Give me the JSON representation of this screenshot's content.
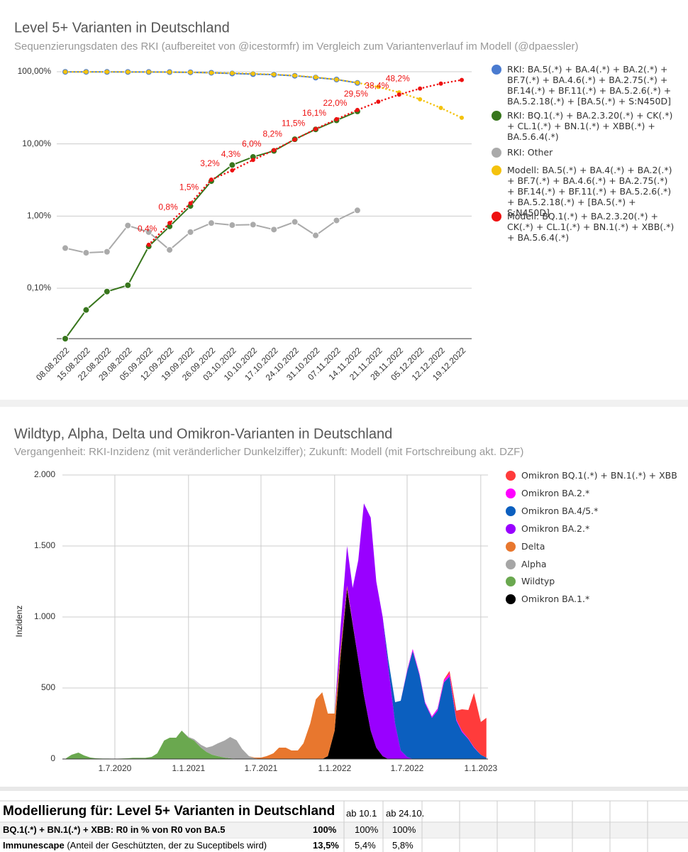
{
  "chart_data": [
    {
      "type": "line",
      "title": "Level 5+ Varianten in Deutschland",
      "subtitle": "Sequenzierungsdaten des RKI (aufbereitet von @icestormfr) im Vergleich zum Variantenverlauf im Modell (@dpaessler)",
      "categories": [
        "08.08.2022",
        "15.08.2022",
        "22.08.2022",
        "29.08.2022",
        "05.09.2022",
        "12.09.2022",
        "19.09.2022",
        "26.09.2022",
        "03.10.2022",
        "10.10.2022",
        "17.10.2022",
        "24.10.2022",
        "31.10.2022",
        "07.11.2022",
        "14.11.2022",
        "21.11.2022",
        "28.11.2022",
        "05.12.2022",
        "12.12.2022",
        "19.12.2022"
      ],
      "log_scale": true,
      "grid": true,
      "legend": "right",
      "ylim": [
        0.02,
        120
      ],
      "yticks": [
        {
          "value": 0.1,
          "label": "0,10%"
        },
        {
          "value": 1,
          "label": "1,00%"
        },
        {
          "value": 10,
          "label": "10,00%"
        },
        {
          "value": 100,
          "label": "100,00%"
        }
      ],
      "series": [
        {
          "name": "RKI: BA.5(.*) + BA.4(.*) + BA.2(.*) + BF.7(.*) + BA.4.6(.*) + BA.2.75(.*) + BF.14(.*) + BF.11(.*) + BA.5.2.6(.*) + BA.5.2.18(.*) + [BA.5(.*) + S:N450D]",
          "color": "#4a7bd0",
          "style": "solid",
          "values": [
            99.6,
            99.6,
            99.5,
            99.4,
            99.2,
            98.9,
            98.2,
            96.8,
            94.5,
            92.7,
            91.2,
            88,
            83,
            78,
            70,
            null,
            null,
            null,
            null,
            null
          ]
        },
        {
          "name": "RKI: BQ.1(.*) + BA.2.3.20(.*) + CK(.*) + CL.1(.*) + BN.1(.*) + XBB(.*) + BA.5.6.4(.*)",
          "color": "#38761d",
          "style": "solid",
          "values": [
            0.02,
            0.05,
            0.09,
            0.11,
            0.38,
            0.72,
            1.38,
            3.05,
            5.1,
            6.6,
            8.0,
            11.6,
            15.9,
            21.2,
            28.2,
            null,
            null,
            null,
            null,
            null
          ]
        },
        {
          "name": "RKI: Other",
          "color": "#aaaaaa",
          "style": "solid",
          "values": [
            0.36,
            0.31,
            0.32,
            0.74,
            0.6,
            0.34,
            0.6,
            0.8,
            0.75,
            0.76,
            0.65,
            0.83,
            0.54,
            0.87,
            1.2,
            null,
            null,
            null,
            null,
            null
          ]
        },
        {
          "name": "Modell: BA.5(.*) + BA.4(.*) + BA.2(.*) + BF.7(.*) + BA.4.6(.*) + BA.2.75(.*) + BF.14(.*) + BF.11(.*) + BA.5.2.6(.*) + BA.5.2.18(.*) + [BA.5(.*) + S:N450D]",
          "color": "#f4c20d",
          "style": "dotted",
          "values": [
            99.6,
            99.6,
            99.5,
            99.4,
            99.2,
            98.9,
            98.3,
            96.8,
            95.7,
            94,
            91.8,
            88.5,
            83.9,
            78,
            70.5,
            61.6,
            51.8,
            41.5,
            31.5,
            23
          ]
        },
        {
          "name": "Modell: BQ.1(.*) + BA.2.3.20(.*) + CK(.*) + CL.1(.*) + BN.1(.*) + XBB(.*) + BA.5.6.4(.*)",
          "color": "#ee1111",
          "style": "dotted",
          "values": [
            null,
            null,
            null,
            null,
            0.4,
            0.8,
            1.5,
            3.2,
            4.3,
            6.0,
            8.2,
            11.5,
            16.1,
            22.0,
            29.5,
            38.4,
            48.2,
            58.5,
            68.5,
            77
          ],
          "value_labels": [
            null,
            null,
            null,
            null,
            "0,4%",
            "0,8%",
            "1,5%",
            "3,2%",
            "4,3%",
            "6,0%",
            "8,2%",
            "11,5%",
            "16,1%",
            "22,0%",
            "29,5%",
            "38,4%",
            "48,2%",
            null,
            null,
            null
          ]
        }
      ]
    },
    {
      "type": "area",
      "title": "Wildtyp, Alpha, Delta und Omikron-Varianten in Deutschland",
      "subtitle": "Vergangenheit: RKI-Inzidenz (mit veränderlicher Dunkelziffer); Zukunft: Modell (mit Fortschreibung akt. DZF)",
      "ylabel": "Inzidenz",
      "stacked": true,
      "grid": true,
      "legend": "right",
      "x": [
        "1.3.2020",
        "15.3.2020",
        "1.4.2020",
        "15.4.2020",
        "1.5.2020",
        "15.5.2020",
        "1.6.2020",
        "15.6.2020",
        "1.7.2020",
        "15.7.2020",
        "1.8.2020",
        "15.8.2020",
        "1.9.2020",
        "15.9.2020",
        "1.10.2020",
        "15.10.2020",
        "1.11.2020",
        "15.11.2020",
        "1.12.2020",
        "15.12.2020",
        "1.1.2021",
        "15.1.2021",
        "1.2.2021",
        "15.2.2021",
        "1.3.2021",
        "15.3.2021",
        "1.4.2021",
        "15.4.2021",
        "1.5.2021",
        "15.5.2021",
        "1.6.2021",
        "15.6.2021",
        "1.7.2021",
        "15.7.2021",
        "1.8.2021",
        "15.8.2021",
        "1.9.2021",
        "15.9.2021",
        "1.10.2021",
        "15.10.2021",
        "1.11.2021",
        "15.11.2021",
        "1.12.2021",
        "15.12.2021",
        "1.1.2022",
        "15.1.2022",
        "1.2.2022",
        "15.2.2022",
        "1.3.2022",
        "15.3.2022",
        "1.4.2022",
        "15.4.2022",
        "1.5.2022",
        "15.5.2022",
        "1.6.2022",
        "15.6.2022",
        "1.7.2022",
        "15.7.2022",
        "1.8.2022",
        "15.8.2022",
        "1.9.2022",
        "15.9.2022",
        "1.10.2022",
        "15.10.2022",
        "1.11.2022",
        "15.11.2022",
        "1.12.2022",
        "15.12.2022",
        "1.1.2023",
        "15.1.2023"
      ],
      "xlim": [
        "21.2.2020",
        "19.1.2023"
      ],
      "xticks": [
        "1.7.2020",
        "1.1.2021",
        "1.7.2021",
        "1.1.2022",
        "1.7.2022",
        "1.1.2023"
      ],
      "ylim": [
        0,
        2000
      ],
      "yticks": [
        0,
        500,
        {
          "value": 1000,
          "label": "1.000"
        },
        {
          "value": 1500,
          "label": "1.500"
        },
        {
          "value": 2000,
          "label": "2.000"
        }
      ],
      "series": [
        {
          "name": "Omikron BQ.1(.*) + BN.1(.*) + XBB",
          "color": "#ff3b3b",
          "values": [
            0,
            0,
            0,
            0,
            0,
            0,
            0,
            0,
            0,
            0,
            0,
            0,
            0,
            0,
            0,
            0,
            0,
            0,
            0,
            0,
            0,
            0,
            0,
            0,
            0,
            0,
            0,
            0,
            0,
            0,
            0,
            0,
            0,
            0,
            0,
            0,
            0,
            0,
            0,
            0,
            0,
            0,
            0,
            0,
            0,
            0,
            0,
            0,
            0,
            0,
            0,
            0,
            0,
            0,
            0,
            0,
            0,
            0,
            0,
            0,
            0,
            0,
            5,
            20,
            60,
            150,
            200,
            380,
            230,
            280
          ]
        },
        {
          "name": "Omikron BA.2.*",
          "color": "#ff00ff",
          "values": [
            0,
            0,
            0,
            0,
            0,
            0,
            0,
            0,
            0,
            0,
            0,
            0,
            0,
            0,
            0,
            0,
            0,
            0,
            0,
            0,
            0,
            0,
            0,
            0,
            0,
            0,
            0,
            0,
            0,
            0,
            0,
            0,
            0,
            0,
            0,
            0,
            0,
            0,
            0,
            0,
            0,
            0,
            0,
            0,
            0,
            0,
            0,
            0,
            0,
            0,
            0,
            0,
            0,
            0,
            0,
            0,
            10,
            15,
            10,
            10,
            10,
            15,
            15,
            20,
            10,
            10,
            5,
            5,
            0,
            0
          ]
        },
        {
          "name": "Omikron BA.4/5.*",
          "color": "#0b5fbf",
          "values": [
            0,
            0,
            0,
            0,
            0,
            0,
            0,
            0,
            0,
            0,
            0,
            0,
            0,
            0,
            0,
            0,
            0,
            0,
            0,
            0,
            0,
            0,
            0,
            0,
            0,
            0,
            0,
            0,
            0,
            0,
            0,
            0,
            0,
            0,
            0,
            0,
            0,
            0,
            0,
            0,
            0,
            0,
            0,
            0,
            0,
            0,
            0,
            0,
            0,
            0,
            0,
            0,
            0,
            50,
            150,
            350,
            600,
            760,
            590,
            390,
            290,
            340,
            540,
            580,
            270,
            190,
            140,
            80,
            30,
            10
          ]
        },
        {
          "name": "Omikron BA.2.*",
          "color": "#9900ff",
          "values": [
            0,
            0,
            0,
            0,
            0,
            0,
            0,
            0,
            0,
            0,
            0,
            0,
            0,
            0,
            0,
            0,
            0,
            0,
            0,
            0,
            0,
            0,
            0,
            0,
            0,
            0,
            0,
            0,
            0,
            0,
            0,
            0,
            0,
            0,
            0,
            0,
            0,
            0,
            0,
            0,
            0,
            0,
            0,
            0,
            0,
            150,
            280,
            250,
            700,
            1350,
            1500,
            1170,
            980,
            650,
            250,
            60,
            15,
            0,
            0,
            0,
            0,
            0,
            0,
            0,
            0,
            0,
            0,
            0,
            0,
            0
          ]
        },
        {
          "name": "Delta",
          "color": "#e8772e",
          "values": [
            0,
            0,
            0,
            0,
            0,
            0,
            0,
            0,
            0,
            0,
            0,
            0,
            0,
            0,
            0,
            0,
            0,
            0,
            0,
            0,
            0,
            0,
            0,
            0,
            0,
            0,
            0,
            0,
            0,
            0,
            0,
            5,
            10,
            20,
            40,
            80,
            80,
            60,
            60,
            110,
            250,
            420,
            470,
            300,
            120,
            50,
            20,
            5,
            0,
            0,
            0,
            0,
            0,
            0,
            0,
            0,
            0,
            0,
            0,
            0,
            0,
            0,
            0,
            0,
            0,
            0,
            0,
            0,
            0,
            0
          ]
        },
        {
          "name": "Alpha",
          "color": "#a6a6a6",
          "values": [
            0,
            0,
            0,
            0,
            0,
            0,
            0,
            0,
            0,
            0,
            0,
            0,
            0,
            0,
            0,
            0,
            0,
            0,
            0,
            0,
            5,
            10,
            20,
            30,
            60,
            90,
            120,
            150,
            130,
            70,
            20,
            5,
            0,
            0,
            0,
            0,
            0,
            0,
            0,
            0,
            0,
            0,
            0,
            0,
            0,
            0,
            0,
            0,
            0,
            0,
            0,
            0,
            0,
            0,
            0,
            0,
            0,
            0,
            0,
            0,
            0,
            0,
            0,
            0,
            0,
            0,
            0,
            0,
            0,
            0
          ]
        },
        {
          "name": "Wildtyp",
          "color": "#6aa84f",
          "values": [
            5,
            30,
            45,
            25,
            10,
            5,
            3,
            3,
            2,
            3,
            5,
            8,
            8,
            8,
            15,
            40,
            130,
            150,
            150,
            200,
            150,
            130,
            80,
            50,
            30,
            20,
            10,
            5,
            2,
            0,
            0,
            0,
            0,
            0,
            0,
            0,
            0,
            0,
            0,
            0,
            0,
            0,
            0,
            0,
            0,
            0,
            0,
            0,
            0,
            0,
            0,
            0,
            0,
            0,
            0,
            0,
            0,
            0,
            0,
            0,
            0,
            0,
            0,
            0,
            0,
            0,
            0,
            0,
            0,
            0
          ]
        },
        {
          "name": "Omikron BA.1.*",
          "color": "#000000",
          "values": [
            0,
            0,
            0,
            0,
            0,
            0,
            0,
            0,
            0,
            0,
            0,
            0,
            0,
            0,
            0,
            0,
            0,
            0,
            0,
            0,
            0,
            0,
            0,
            0,
            0,
            0,
            0,
            0,
            0,
            0,
            0,
            0,
            0,
            0,
            0,
            0,
            0,
            0,
            0,
            0,
            0,
            0,
            0,
            20,
            200,
            700,
            1200,
            950,
            700,
            450,
            200,
            80,
            20,
            0,
            0,
            0,
            0,
            0,
            0,
            0,
            0,
            0,
            0,
            0,
            0,
            0,
            0,
            0,
            0,
            0
          ]
        }
      ]
    }
  ],
  "table": {
    "header": [
      "Modellierung für: Level 5+ Varianten in Deutschland",
      "ab 10.1",
      "ab 24.10."
    ],
    "rows": [
      {
        "label_bold": "BQ.1(.*) + BN.1(.*) + XBB: R0 in % von R0 von BA.5",
        "cells": [
          "100%",
          "100%",
          "100%"
        ]
      },
      {
        "label_bold": "Immunescape",
        "label": "(Anteil der Geschützten, der zu Suceptibels wird)",
        "cells": [
          "13,5%",
          "5,4%",
          "5,8%"
        ]
      }
    ]
  }
}
